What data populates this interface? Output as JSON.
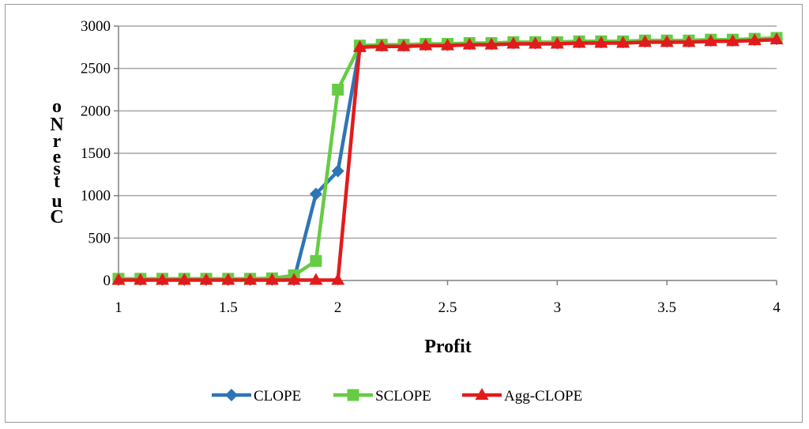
{
  "chart_data": {
    "type": "line",
    "title": "",
    "xlabel": "Profit",
    "ylabel": "oNrestuC",
    "xlim": [
      1,
      4
    ],
    "ylim": [
      0,
      3000
    ],
    "xticks": [
      1,
      1.5,
      2,
      2.5,
      3,
      3.5,
      4
    ],
    "xtick_labels": [
      "1",
      "1.5",
      "2",
      "2.5",
      "3",
      "3.5",
      "4"
    ],
    "yticks": [
      0,
      500,
      1000,
      1500,
      2000,
      2500,
      3000
    ],
    "ytick_labels": [
      "0",
      "500",
      "1000",
      "1500",
      "2000",
      "2500",
      "3000"
    ],
    "grid": "horizontal",
    "legend_position": "bottom",
    "x": [
      1.0,
      1.1,
      1.2,
      1.3,
      1.4,
      1.5,
      1.6,
      1.7,
      1.8,
      1.9,
      2.0,
      2.1,
      2.2,
      2.3,
      2.4,
      2.5,
      2.6,
      2.7,
      2.8,
      2.9,
      3.0,
      3.1,
      3.2,
      3.3,
      3.4,
      3.5,
      3.6,
      3.7,
      3.8,
      3.9,
      4.0
    ],
    "series": [
      {
        "name": "CLOPE",
        "color": "#2e75b6",
        "marker": "diamond",
        "values": [
          10,
          10,
          10,
          10,
          10,
          10,
          10,
          10,
          10,
          1020,
          1290,
          2760,
          2770,
          2770,
          2780,
          2780,
          2790,
          2790,
          2800,
          2800,
          2800,
          2810,
          2810,
          2810,
          2820,
          2820,
          2820,
          2830,
          2830,
          2840,
          2850
        ]
      },
      {
        "name": "SCLOPE",
        "color": "#66cc44",
        "marker": "square",
        "values": [
          20,
          20,
          20,
          20,
          20,
          20,
          20,
          25,
          60,
          230,
          2250,
          2770,
          2780,
          2780,
          2790,
          2790,
          2800,
          2800,
          2810,
          2810,
          2810,
          2820,
          2820,
          2820,
          2830,
          2830,
          2830,
          2840,
          2840,
          2850,
          2860
        ]
      },
      {
        "name": "Agg-CLOPE",
        "color": "#e31a1c",
        "marker": "triangle",
        "values": [
          5,
          5,
          5,
          5,
          5,
          5,
          5,
          5,
          5,
          5,
          5,
          2750,
          2760,
          2760,
          2770,
          2770,
          2780,
          2780,
          2790,
          2790,
          2790,
          2800,
          2800,
          2800,
          2810,
          2810,
          2810,
          2820,
          2820,
          2830,
          2840
        ]
      }
    ]
  }
}
